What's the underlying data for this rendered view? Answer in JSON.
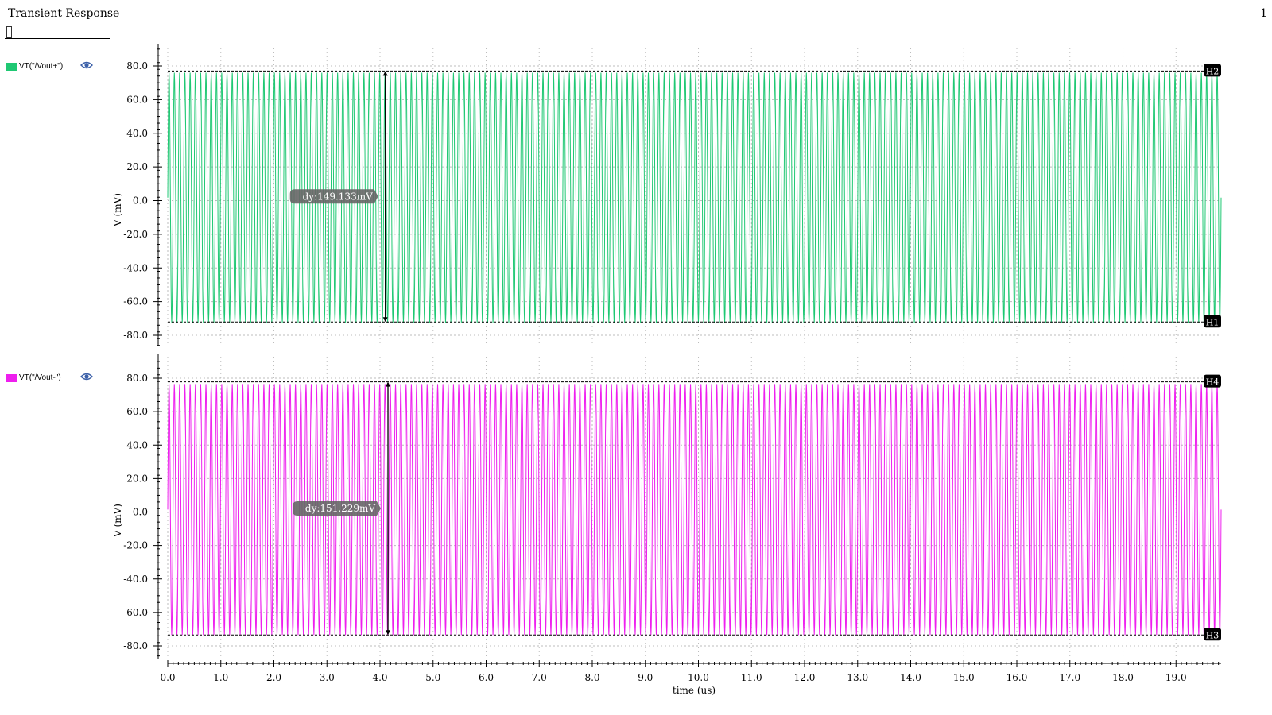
{
  "window": {
    "title": "Transient Response",
    "page_number": "1",
    "title_field_value": ""
  },
  "legend": [
    {
      "label": "VT(\"/Vout+\")",
      "color": "#1fc873",
      "icon": "eye-icon"
    },
    {
      "label": "VT(\"/Vout-\")",
      "color": "#ee1fee",
      "icon": "eye-icon"
    }
  ],
  "chart_data": [
    {
      "type": "line",
      "series": [
        {
          "name": "VT(\"/Vout+\")",
          "color": "#1fc873",
          "description_values": {
            "waveform": "sinusoid",
            "cycles": 200,
            "x_start": 0.0,
            "x_end": 19.85,
            "y_max": 76.0,
            "y_min": -72.5
          }
        }
      ],
      "ylabel": "V (mV)",
      "xlabel": "",
      "ylim": [
        -87.5,
        91.0
      ],
      "yticks": [
        80.0,
        60.0,
        40.0,
        20.0,
        0.0,
        -20.0,
        -40.0,
        -60.0,
        -80.0
      ],
      "ytick_labels": [
        "80.0",
        "60.0",
        "40.0",
        "20.0",
        "0.0",
        "-20.0",
        "-40.0",
        "-60.0",
        "-80.0"
      ],
      "xlim": [
        0.0,
        19.85
      ],
      "grid": true,
      "markers": [
        {
          "label": "H2",
          "y": 77.0
        },
        {
          "label": "H1",
          "y": -72.1
        }
      ],
      "delta": {
        "label": "dy:149.133mV",
        "x": 4.1,
        "y_top": 77.0,
        "y_bottom": -72.1
      }
    },
    {
      "type": "line",
      "series": [
        {
          "name": "VT(\"/Vout-\")",
          "color": "#ee1fee",
          "description_values": {
            "waveform": "sinusoid",
            "cycles": 200,
            "x_start": 0.0,
            "x_end": 19.85,
            "y_max": 76.5,
            "y_min": -73.5
          }
        }
      ],
      "ylabel": "V (mV)",
      "xlabel": "time (us)",
      "ylim": [
        -87.5,
        91.0
      ],
      "yticks": [
        80.0,
        60.0,
        40.0,
        20.0,
        0.0,
        -20.0,
        -40.0,
        -60.0,
        -80.0
      ],
      "ytick_labels": [
        "80.0",
        "60.0",
        "40.0",
        "20.0",
        "0.0",
        "-20.0",
        "-40.0",
        "-60.0",
        "-80.0"
      ],
      "xlim": [
        0.0,
        19.85
      ],
      "xticks": [
        0.0,
        1.0,
        2.0,
        3.0,
        4.0,
        5.0,
        6.0,
        7.0,
        8.0,
        9.0,
        10.0,
        11.0,
        12.0,
        13.0,
        14.0,
        15.0,
        16.0,
        17.0,
        18.0,
        19.0
      ],
      "xtick_labels": [
        "0.0",
        "1.0",
        "2.0",
        "3.0",
        "4.0",
        "5.0",
        "6.0",
        "7.0",
        "8.0",
        "9.0",
        "10.0",
        "11.0",
        "12.0",
        "13.0",
        "14.0",
        "15.0",
        "16.0",
        "17.0",
        "18.0",
        "19.0"
      ],
      "grid": true,
      "markers": [
        {
          "label": "H4",
          "y": 77.8
        },
        {
          "label": "H3",
          "y": -73.5
        }
      ],
      "delta": {
        "label": "dy:151.229mV",
        "x": 4.15,
        "y_top": 77.8,
        "y_bottom": -73.5
      }
    }
  ]
}
